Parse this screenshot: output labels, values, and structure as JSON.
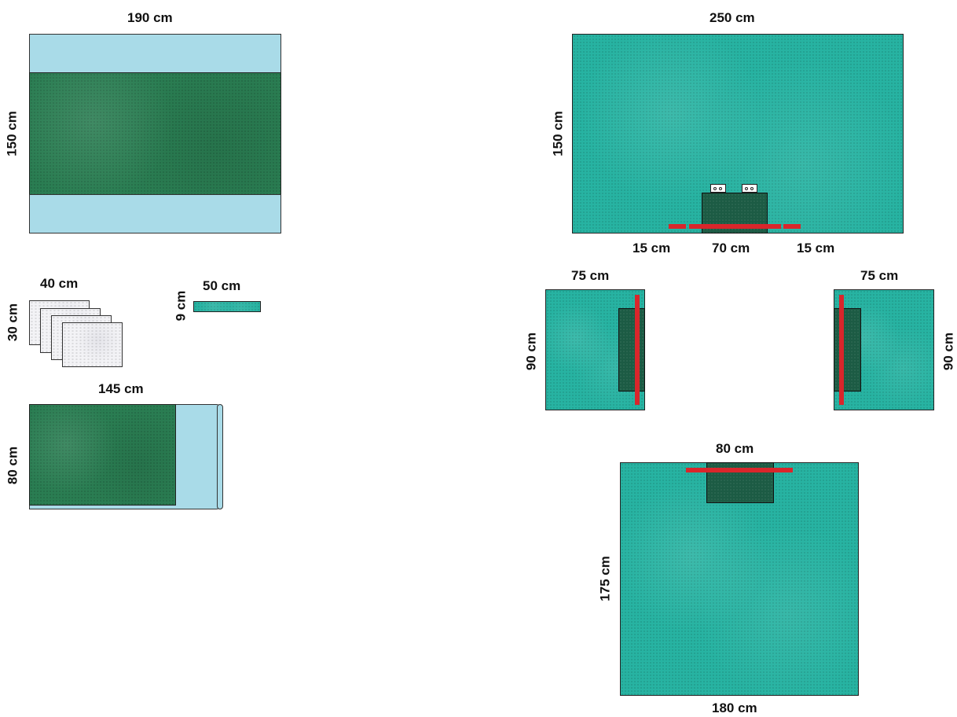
{
  "labels": {
    "sheet_width": "190 cm",
    "sheet_height": "150 cm",
    "towel_width": "40 cm",
    "towel_height": "30 cm",
    "tape_width": "50 cm",
    "tape_height": "9 cm",
    "table_cover_width": "145 cm",
    "table_cover_height": "80 cm",
    "large_drape_width": "250 cm",
    "large_drape_height": "150 cm",
    "tape_left": "15 cm",
    "tape_middle": "70 cm",
    "tape_right": "15 cm",
    "side_drape_left_width": "75 cm",
    "side_drape_left_height": "90 cm",
    "side_drape_right_width": "75 cm",
    "side_drape_right_height": "90 cm",
    "bottom_drape_top_width": "80 cm",
    "bottom_drape_height": "175 cm",
    "bottom_drape_width": "180 cm"
  },
  "colors": {
    "teal_drape": "#27b3a2",
    "dark_reinforcement": "#1c5b44",
    "green_absorbent": "#2a7d52",
    "light_blue_film": "#a9dbe8",
    "adhesive_tape": "#d9262b"
  }
}
